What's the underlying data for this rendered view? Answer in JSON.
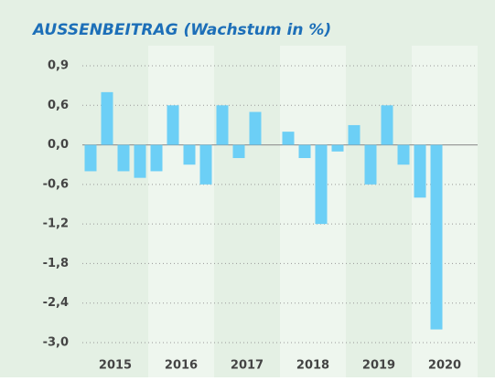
{
  "chart_data": {
    "type": "bar",
    "title": "AUSSENBEITRAG (Wachstum in %)",
    "groups": [
      "2015",
      "2016",
      "2017",
      "2018",
      "2019",
      "2020"
    ],
    "values": [
      -0.4,
      0.7,
      -0.4,
      -0.5,
      -0.4,
      0.6,
      -0.3,
      -0.6,
      0.6,
      -0.2,
      0.5,
      0.0,
      0.2,
      -0.2,
      -1.2,
      -0.1,
      0.3,
      -0.6,
      0.6,
      -0.3,
      -0.8,
      -2.8,
      null,
      null
    ],
    "color": "#6ccff6",
    "ylim": [
      -3.0,
      0.9
    ],
    "yticks": [
      {
        "value": 0.9,
        "label": "0,9"
      },
      {
        "value": 0.6,
        "label": "0,6"
      },
      {
        "value": 0.0,
        "label": "0,0"
      },
      {
        "value": -0.6,
        "label": "-0,6"
      },
      {
        "value": -1.2,
        "label": "-1,2"
      },
      {
        "value": -1.8,
        "label": "-1,8"
      },
      {
        "value": -2.4,
        "label": "-2,4"
      },
      {
        "value": -3.0,
        "label": "-3,0"
      }
    ],
    "grid": true
  }
}
